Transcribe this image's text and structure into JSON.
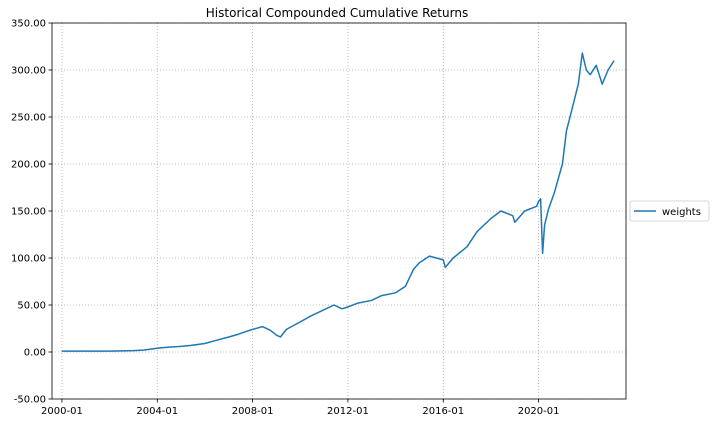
{
  "chart_data": {
    "type": "line",
    "title": "Historical Compounded Cumulative Returns",
    "xlabel": "",
    "ylabel": "",
    "x_tick_labels": [
      "2000-01",
      "2004-01",
      "2008-01",
      "2012-01",
      "2016-01",
      "2020-01"
    ],
    "y_tick_labels": [
      "-50.00",
      "0.00",
      "50.00",
      "100.00",
      "150.00",
      "200.00",
      "250.00",
      "300.00",
      "350.00"
    ],
    "ylim": [
      -50,
      350
    ],
    "xlim": [
      "1999-08",
      "2023-09"
    ],
    "grid": true,
    "legend_position": "center-right outside",
    "series": [
      {
        "name": "weights",
        "color": "#1f77b4",
        "x": [
          "2000-01",
          "2001-01",
          "2002-01",
          "2003-01",
          "2003-06",
          "2004-01",
          "2004-06",
          "2005-01",
          "2005-06",
          "2006-01",
          "2006-06",
          "2007-01",
          "2007-06",
          "2007-10",
          "2008-01",
          "2008-06",
          "2008-10",
          "2009-01",
          "2009-03",
          "2009-06",
          "2010-01",
          "2010-06",
          "2011-01",
          "2011-06",
          "2011-10",
          "2012-01",
          "2012-06",
          "2013-01",
          "2013-06",
          "2014-01",
          "2014-06",
          "2014-10",
          "2015-01",
          "2015-06",
          "2016-01",
          "2016-02",
          "2016-06",
          "2017-01",
          "2017-06",
          "2018-01",
          "2018-06",
          "2018-12",
          "2019-01",
          "2019-06",
          "2019-12",
          "2020-01",
          "2020-02",
          "2020-03",
          "2020-04",
          "2020-06",
          "2020-09",
          "2021-01",
          "2021-03",
          "2021-06",
          "2021-09",
          "2021-11",
          "2022-01",
          "2022-03",
          "2022-06",
          "2022-09",
          "2022-12",
          "2023-03"
        ],
        "values": [
          1,
          1,
          1,
          1.5,
          2,
          4,
          5,
          6,
          7,
          9,
          12,
          16,
          19,
          22,
          24,
          27,
          23,
          18,
          16,
          24,
          32,
          38,
          45,
          50,
          46,
          48,
          52,
          55,
          60,
          63,
          70,
          88,
          95,
          102,
          98,
          90,
          100,
          112,
          128,
          142,
          150,
          145,
          138,
          150,
          155,
          160,
          163,
          105,
          135,
          152,
          170,
          200,
          235,
          260,
          285,
          318,
          300,
          295,
          305,
          285,
          300,
          310
        ]
      }
    ]
  }
}
